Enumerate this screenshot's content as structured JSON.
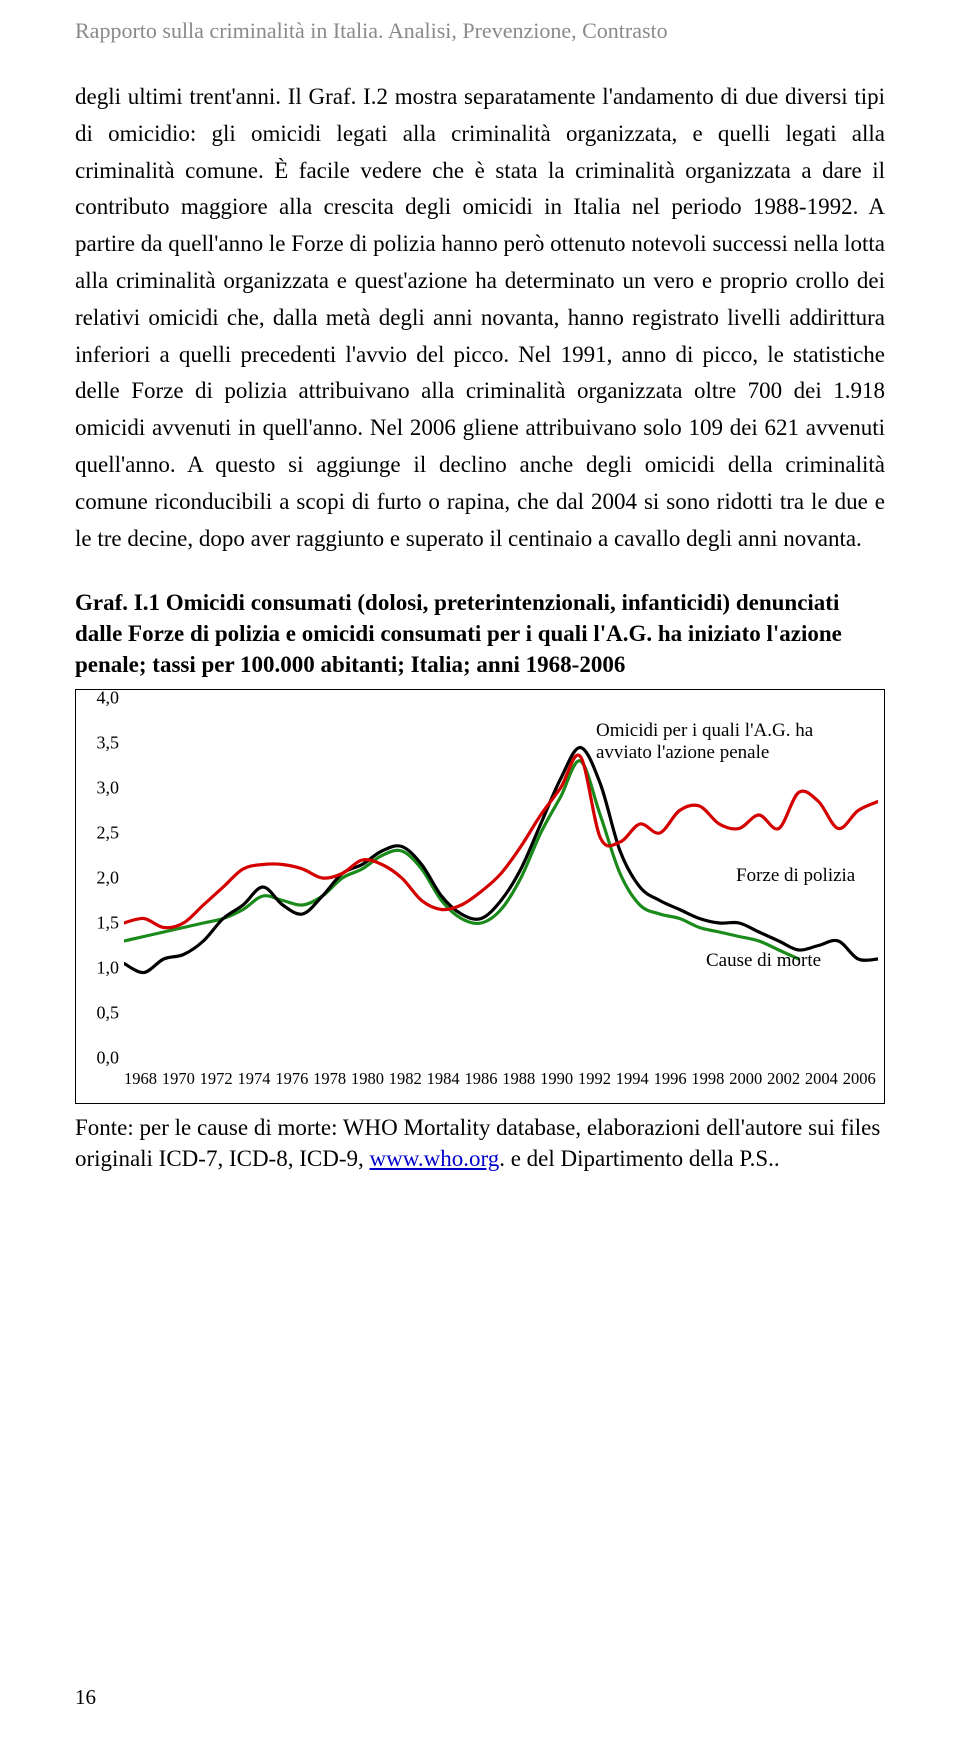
{
  "header": "Rapporto sulla criminalità in Italia. Analisi, Prevenzione, Contrasto",
  "body": "degli ultimi trent'anni. Il Graf. I.2 mostra separatamente l'andamento di due diversi tipi di omicidio: gli omicidi legati alla criminalità organizzata, e quelli legati alla criminalità comune. È facile vedere che è stata la criminalità organizzata a dare il contributo maggiore alla crescita degli omicidi in Italia nel periodo 1988-1992. A partire da quell'anno le Forze di polizia hanno però ottenuto notevoli successi nella lotta alla criminalità organizzata e quest'azione ha determinato un vero e proprio crollo dei relativi omicidi che, dalla metà degli anni novanta, hanno registrato livelli addirittura inferiori a quelli precedenti l'avvio del picco. Nel 1991, anno di picco, le statistiche delle Forze di polizia attribuivano alla criminalità organizzata oltre 700 dei 1.918 omicidi avvenuti in quell'anno. Nel 2006 gliene attribuivano solo 109 dei 621 avvenuti quell'anno. A questo si aggiunge il declino anche degli omicidi della criminalità comune riconducibili a scopi di furto o rapina, che dal 2004 si sono ridotti tra le due e le tre decine, dopo aver raggiunto e superato il centinaio a cavallo degli anni novanta.",
  "caption": {
    "lead": "Graf. I.1",
    "rest": "Omicidi consumati (dolosi, preterintenzionali, infanticidi) denunciati dalle Forze di polizia e omicidi consumati per i quali l'A.G. ha iniziato l'azione penale; tassi per 100.000 abitanti; Italia; anni 1968-2006"
  },
  "chart": {
    "type": "line",
    "ylim": [
      0,
      4.0
    ],
    "ytick_step": 0.5,
    "y_ticks": [
      "0,0",
      "0,5",
      "1,0",
      "1,5",
      "2,0",
      "2,5",
      "3,0",
      "3,5",
      "4,0"
    ],
    "x_years": [
      1968,
      1970,
      1972,
      1974,
      1976,
      1978,
      1980,
      1982,
      1984,
      1986,
      1988,
      1990,
      1992,
      1994,
      1996,
      1998,
      2000,
      2002,
      2004,
      2006
    ],
    "x_range": [
      1968,
      2006
    ],
    "background_color": "#ffffff",
    "legends": {
      "ag": "Omicidi per i quali l'A.G. ha avviato l'azione penale",
      "police": "Forze di polizia",
      "deaths": "Cause di morte"
    },
    "series": {
      "police": {
        "color": "#000000",
        "width": 3.2,
        "points": [
          [
            1968,
            1.05
          ],
          [
            1969,
            0.95
          ],
          [
            1970,
            1.1
          ],
          [
            1971,
            1.15
          ],
          [
            1972,
            1.3
          ],
          [
            1973,
            1.55
          ],
          [
            1974,
            1.7
          ],
          [
            1975,
            1.9
          ],
          [
            1976,
            1.7
          ],
          [
            1977,
            1.6
          ],
          [
            1978,
            1.8
          ],
          [
            1979,
            2.05
          ],
          [
            1980,
            2.15
          ],
          [
            1981,
            2.3
          ],
          [
            1982,
            2.35
          ],
          [
            1983,
            2.15
          ],
          [
            1984,
            1.8
          ],
          [
            1985,
            1.6
          ],
          [
            1986,
            1.55
          ],
          [
            1987,
            1.75
          ],
          [
            1988,
            2.1
          ],
          [
            1989,
            2.6
          ],
          [
            1990,
            3.1
          ],
          [
            1991,
            3.45
          ],
          [
            1992,
            3.05
          ],
          [
            1993,
            2.3
          ],
          [
            1994,
            1.9
          ],
          [
            1995,
            1.75
          ],
          [
            1996,
            1.65
          ],
          [
            1997,
            1.55
          ],
          [
            1998,
            1.5
          ],
          [
            1999,
            1.5
          ],
          [
            2000,
            1.4
          ],
          [
            2001,
            1.3
          ],
          [
            2002,
            1.2
          ],
          [
            2003,
            1.25
          ],
          [
            2004,
            1.3
          ],
          [
            2005,
            1.1
          ],
          [
            2006,
            1.1
          ]
        ]
      },
      "deaths": {
        "color": "#1a8a1a",
        "width": 3.2,
        "points": [
          [
            1968,
            1.3
          ],
          [
            1969,
            1.35
          ],
          [
            1970,
            1.4
          ],
          [
            1971,
            1.45
          ],
          [
            1972,
            1.5
          ],
          [
            1973,
            1.55
          ],
          [
            1974,
            1.65
          ],
          [
            1975,
            1.8
          ],
          [
            1976,
            1.75
          ],
          [
            1977,
            1.7
          ],
          [
            1978,
            1.8
          ],
          [
            1979,
            2.0
          ],
          [
            1980,
            2.1
          ],
          [
            1981,
            2.25
          ],
          [
            1982,
            2.3
          ],
          [
            1983,
            2.1
          ],
          [
            1984,
            1.75
          ],
          [
            1985,
            1.55
          ],
          [
            1986,
            1.5
          ],
          [
            1987,
            1.65
          ],
          [
            1988,
            2.0
          ],
          [
            1989,
            2.5
          ],
          [
            1990,
            2.9
          ],
          [
            1991,
            3.3
          ],
          [
            1992,
            2.7
          ],
          [
            1993,
            2.05
          ],
          [
            1994,
            1.7
          ],
          [
            1995,
            1.6
          ],
          [
            1996,
            1.55
          ],
          [
            1997,
            1.45
          ],
          [
            1998,
            1.4
          ],
          [
            1999,
            1.35
          ],
          [
            2000,
            1.3
          ],
          [
            2001,
            1.2
          ],
          [
            2002,
            1.1
          ]
        ]
      },
      "ag": {
        "color": "#d40000",
        "width": 3.2,
        "points": [
          [
            1968,
            1.5
          ],
          [
            1969,
            1.55
          ],
          [
            1970,
            1.45
          ],
          [
            1971,
            1.5
          ],
          [
            1972,
            1.7
          ],
          [
            1973,
            1.9
          ],
          [
            1974,
            2.1
          ],
          [
            1975,
            2.15
          ],
          [
            1976,
            2.15
          ],
          [
            1977,
            2.1
          ],
          [
            1978,
            2.0
          ],
          [
            1979,
            2.05
          ],
          [
            1980,
            2.2
          ],
          [
            1981,
            2.15
          ],
          [
            1982,
            2.0
          ],
          [
            1983,
            1.75
          ],
          [
            1984,
            1.65
          ],
          [
            1985,
            1.7
          ],
          [
            1986,
            1.85
          ],
          [
            1987,
            2.05
          ],
          [
            1988,
            2.35
          ],
          [
            1989,
            2.7
          ],
          [
            1990,
            3.0
          ],
          [
            1991,
            3.35
          ],
          [
            1992,
            2.45
          ],
          [
            1993,
            2.4
          ],
          [
            1994,
            2.6
          ],
          [
            1995,
            2.5
          ],
          [
            1996,
            2.75
          ],
          [
            1997,
            2.8
          ],
          [
            1998,
            2.6
          ],
          [
            1999,
            2.55
          ],
          [
            2000,
            2.7
          ],
          [
            2001,
            2.55
          ],
          [
            2002,
            2.95
          ],
          [
            2003,
            2.85
          ],
          [
            2004,
            2.55
          ],
          [
            2005,
            2.75
          ],
          [
            2006,
            2.85
          ]
        ]
      }
    }
  },
  "source": {
    "pre": "Fonte: per le cause di morte: WHO Mortality database, elaborazioni dell'autore sui files originali ICD-7, ICD-8, ICD-9, ",
    "link": "www.who.org",
    "post": ". e del Dipartimento della P.S.."
  },
  "page_number": "16"
}
